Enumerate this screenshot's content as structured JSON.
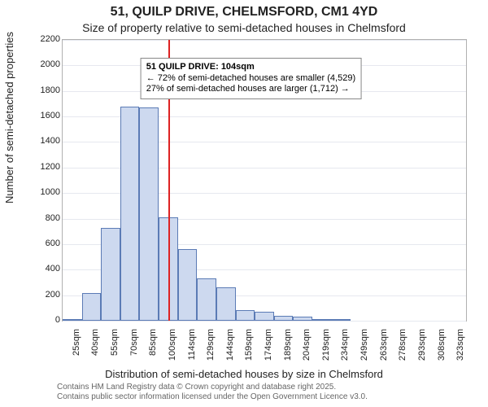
{
  "title": "51, QUILP DRIVE, CHELMSFORD, CM1 4YD",
  "subtitle": "Size of property relative to semi-detached houses in Chelmsford",
  "ylabel": "Number of semi-detached properties",
  "xlabel": "Distribution of semi-detached houses by size in Chelmsford",
  "credits_line1": "Contains HM Land Registry data © Crown copyright and database right 2025.",
  "credits_line2": "Contains public sector information licensed under the Open Government Licence v3.0.",
  "chart": {
    "type": "histogram",
    "background_color": "#ffffff",
    "border_color": "#b0b0b0",
    "grid_color": "#e6e8ef",
    "axis_text_color": "#222222",
    "ylim": [
      0,
      2200
    ],
    "ytick_step": 200,
    "x_categories": [
      "25sqm",
      "40sqm",
      "55sqm",
      "70sqm",
      "85sqm",
      "100sqm",
      "114sqm",
      "129sqm",
      "144sqm",
      "159sqm",
      "174sqm",
      "189sqm",
      "204sqm",
      "219sqm",
      "234sqm",
      "249sqm",
      "263sqm",
      "278sqm",
      "293sqm",
      "308sqm",
      "323sqm"
    ],
    "values": [
      10,
      220,
      730,
      1680,
      1670,
      810,
      560,
      330,
      260,
      80,
      70,
      40,
      30,
      10,
      10,
      0,
      0,
      0,
      0,
      0,
      0
    ],
    "bar_fill": "#cdd9ef",
    "bar_border": "#5b7bb5",
    "bar_border_width": 1,
    "bar_gap_ratio": 0.0,
    "label_fontsize": 13,
    "tick_fontsize": 11,
    "title_fontsize": 16,
    "subtitle_fontsize": 14,
    "reference": {
      "category": "100sqm",
      "line_color": "#dd2222",
      "line_width": 2
    },
    "annotation": {
      "line1": "51 QUILP DRIVE: 104sqm",
      "line2": "← 72% of semi-detached houses are smaller (4,529)",
      "line3": "27% of semi-detached houses are larger (1,712) →",
      "bg": "#ffffff",
      "border": "#888888",
      "pos_category": "129sqm",
      "pos_y_value": 2060
    }
  }
}
